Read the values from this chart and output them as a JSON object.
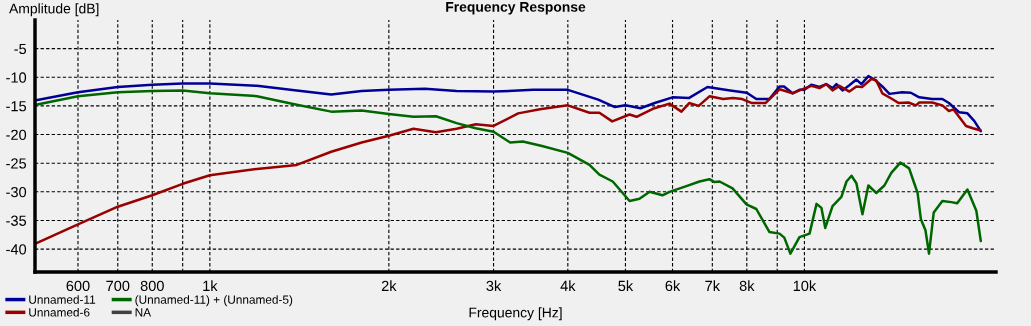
{
  "chart_data": {
    "type": "line",
    "title": "Frequency Response",
    "xlabel": "Frequency [Hz]",
    "ylabel": "Amplitude [dB]",
    "log": "x",
    "grid": true,
    "legend": "bottom left",
    "line_style": "solid",
    "marker": "none",
    "xlim": [
      508,
      21000
    ],
    "ylim": [
      -44,
      0
    ],
    "xticks": [
      600,
      700,
      800,
      {
        "value": 900,
        "label": null
      },
      {
        "value": 1000,
        "label": "1k"
      },
      {
        "value": 2000,
        "label": "2k"
      },
      {
        "value": 3000,
        "label": "3k"
      },
      {
        "value": 4000,
        "label": "4k"
      },
      {
        "value": 5000,
        "label": "5k"
      },
      {
        "value": 6000,
        "label": "6k"
      },
      {
        "value": 7000,
        "label": "7k"
      },
      {
        "value": 8000,
        "label": "8k"
      },
      {
        "value": 9000,
        "label": null
      },
      {
        "value": 10000,
        "label": "10k"
      }
    ],
    "yticks": [
      -5,
      -10,
      -15,
      -20,
      -25,
      -30,
      -35,
      -40
    ],
    "series": [
      {
        "name": "Unnamed-11",
        "color": "#000099",
        "x": [
          510,
          600,
          700,
          800,
          900,
          1000,
          1200,
          1400,
          1600,
          1800,
          2000,
          2300,
          2600,
          3000,
          3500,
          4000,
          4500,
          4800,
          5000,
          5300,
          5600,
          6000,
          6400,
          6870,
          7500,
          8000,
          8300,
          8730,
          9080,
          9240,
          9550,
          9810,
          10000,
          10270,
          10600,
          10880,
          11150,
          11320,
          11590,
          11900,
          12230,
          12470,
          12810,
          13110,
          13520,
          13900,
          14600,
          15100,
          15600,
          16400,
          17060,
          17500,
          18200,
          18800,
          19300,
          19800
        ],
        "values": [
          -14.0,
          -12.6,
          -11.7,
          -11.3,
          -11.1,
          -11.1,
          -11.5,
          -12.3,
          -13.0,
          -12.4,
          -12.2,
          -12.0,
          -12.4,
          -12.5,
          -12.2,
          -12.2,
          -13.9,
          -15.2,
          -14.9,
          -15.4,
          -14.5,
          -13.5,
          -13.6,
          -11.7,
          -12.3,
          -12.7,
          -13.8,
          -13.8,
          -11.6,
          -11.6,
          -12.8,
          -12.2,
          -12.2,
          -11.3,
          -11.7,
          -11.2,
          -11.9,
          -11.2,
          -12.3,
          -11.4,
          -10.4,
          -11.2,
          -9.8,
          -10.4,
          -11.6,
          -12.9,
          -12.6,
          -12.7,
          -13.5,
          -13.8,
          -13.8,
          -14.5,
          -16.1,
          -16.3,
          -17.6,
          -19.4
        ]
      },
      {
        "name": "Unnamed-6",
        "color": "#990000",
        "x": [
          510,
          600,
          700,
          800,
          900,
          1000,
          1200,
          1400,
          1600,
          1800,
          2000,
          2200,
          2400,
          2600,
          2800,
          3000,
          3300,
          3590,
          4000,
          4350,
          4520,
          4750,
          5080,
          5220,
          5560,
          5930,
          6210,
          6400,
          6640,
          6930,
          7300,
          7580,
          7860,
          8160,
          8600,
          9080,
          9550,
          9810,
          10270,
          10600,
          10880,
          11150,
          11450,
          11900,
          12230,
          12500,
          12960,
          13200,
          13520,
          14000,
          14400,
          14960,
          15400,
          15600,
          16400,
          17060,
          17500,
          17800,
          18700,
          19200,
          19800
        ],
        "values": [
          -39.0,
          -35.7,
          -32.6,
          -30.6,
          -28.6,
          -27.1,
          -26.0,
          -25.3,
          -23.0,
          -21.4,
          -20.2,
          -19.0,
          -19.6,
          -19.0,
          -18.2,
          -18.5,
          -16.3,
          -15.6,
          -14.9,
          -16.2,
          -16.2,
          -17.7,
          -16.5,
          -16.9,
          -15.5,
          -14.6,
          -16.0,
          -14.5,
          -15.0,
          -13.3,
          -13.8,
          -13.6,
          -13.8,
          -14.5,
          -14.5,
          -12.1,
          -12.8,
          -12.3,
          -11.5,
          -11.9,
          -11.2,
          -12.3,
          -11.5,
          -12.5,
          -11.6,
          -11.7,
          -10.3,
          -10.5,
          -12.8,
          -13.7,
          -14.5,
          -14.4,
          -14.9,
          -14.4,
          -14.4,
          -14.9,
          -15.9,
          -15.6,
          -18.5,
          -18.9,
          -19.3
        ]
      },
      {
        "name": "(Unnamed-11) + (Unnamed-5)",
        "color": "#006600",
        "x": [
          510,
          600,
          700,
          800,
          900,
          1000,
          1200,
          1400,
          1600,
          1800,
          2000,
          2200,
          2400,
          2600,
          2800,
          3000,
          3200,
          3360,
          3620,
          4000,
          4350,
          4520,
          4760,
          5080,
          5280,
          5490,
          5770,
          5930,
          6330,
          6660,
          6920,
          7060,
          7200,
          7570,
          7990,
          8300,
          8730,
          9080,
          9250,
          9470,
          9810,
          10200,
          10480,
          10680,
          10840,
          11150,
          11540,
          11770,
          12000,
          12230,
          12520,
          12810,
          13210,
          13630,
          14000,
          14500,
          15000,
          15300,
          15500,
          15700,
          15980,
          16200,
          16500,
          17060,
          17660,
          18070,
          18800,
          19100,
          19460,
          19800
        ],
        "values": [
          -14.8,
          -13.3,
          -12.6,
          -12.4,
          -12.3,
          -12.8,
          -13.3,
          -14.8,
          -16.0,
          -15.8,
          -16.4,
          -16.9,
          -16.8,
          -18.0,
          -18.9,
          -19.5,
          -21.4,
          -21.2,
          -22.0,
          -23.2,
          -25.3,
          -27.0,
          -28.2,
          -31.6,
          -31.2,
          -30.0,
          -30.6,
          -30.0,
          -29.0,
          -28.2,
          -27.8,
          -28.3,
          -28.2,
          -29.4,
          -32.2,
          -33.0,
          -37.0,
          -37.3,
          -38.0,
          -40.8,
          -37.9,
          -37.3,
          -32.1,
          -32.8,
          -36.3,
          -32.5,
          -30.9,
          -28.2,
          -27.2,
          -28.5,
          -33.9,
          -28.9,
          -30.2,
          -28.9,
          -26.7,
          -24.9,
          -25.9,
          -28.5,
          -30.2,
          -34.8,
          -36.7,
          -40.8,
          -33.6,
          -31.6,
          -31.8,
          -32.0,
          -29.6,
          -31.3,
          -33.3,
          -38.6
        ]
      },
      {
        "name": "NA",
        "color": "#404040"
      }
    ]
  }
}
